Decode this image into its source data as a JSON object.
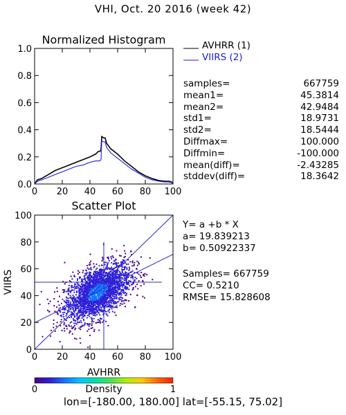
{
  "page": {
    "title": "VHI,  Oct. 20 2016 (week 42)",
    "footer": "lon=[-180.00, 180.00] lat=[-55.15, 75.02]"
  },
  "chart_data": [
    {
      "type": "line",
      "title": "Normalized Histogram",
      "xlabel": "",
      "ylabel": "",
      "xlim": [
        0,
        100
      ],
      "ylim": [
        0,
        1.0
      ],
      "x_ticks": [
        "0",
        "20",
        "40",
        "60",
        "80",
        "100"
      ],
      "y_ticks": [
        "0.0",
        "0.2",
        "0.4",
        "0.6",
        "0.8",
        "1.0"
      ],
      "legend_position": "top-right",
      "series": [
        {
          "name": "AVHRR (1)",
          "color": "#000000",
          "x": [
            0,
            2,
            5,
            10,
            15,
            20,
            25,
            30,
            35,
            40,
            44,
            46,
            47,
            48,
            48.5,
            50,
            51,
            52,
            55,
            60,
            65,
            70,
            75,
            80,
            85,
            90,
            94,
            97,
            99,
            100
          ],
          "y": [
            0.0,
            0.03,
            0.04,
            0.07,
            0.1,
            0.12,
            0.14,
            0.16,
            0.18,
            0.2,
            0.22,
            0.24,
            0.24,
            0.25,
            0.35,
            0.34,
            0.34,
            0.3,
            0.26,
            0.22,
            0.17,
            0.13,
            0.09,
            0.06,
            0.04,
            0.025,
            0.02,
            0.02,
            0.015,
            0.0
          ]
        },
        {
          "name": "VIIRS (2)",
          "color": "#1a1ae6",
          "x": [
            0,
            2,
            5,
            10,
            15,
            20,
            25,
            30,
            35,
            40,
            44,
            46,
            47,
            48,
            48.5,
            50,
            51,
            52,
            55,
            60,
            65,
            70,
            75,
            80,
            85,
            90,
            94,
            97,
            99,
            100
          ],
          "y": [
            0.0,
            0.02,
            0.03,
            0.05,
            0.07,
            0.09,
            0.11,
            0.13,
            0.14,
            0.16,
            0.17,
            0.17,
            0.17,
            0.18,
            0.32,
            0.31,
            0.31,
            0.27,
            0.23,
            0.19,
            0.15,
            0.11,
            0.08,
            0.05,
            0.03,
            0.02,
            0.015,
            0.015,
            0.01,
            0.0
          ]
        }
      ],
      "stats": [
        {
          "label": "samples=",
          "value": "667759"
        },
        {
          "label": "mean1=",
          "value": "45.3814"
        },
        {
          "label": "mean2=",
          "value": "42.9484"
        },
        {
          "label": "std1=",
          "value": "18.9731"
        },
        {
          "label": "std2=",
          "value": "18.5444"
        },
        {
          "label": "Diffmax=",
          "value": "100.000"
        },
        {
          "label": "Diffmin=",
          "value": "-100.000"
        },
        {
          "label": "mean(diff)=",
          "value": "-2.43285"
        },
        {
          "label": "stddev(diff)=",
          "value": "18.3642"
        }
      ]
    },
    {
      "type": "scatter",
      "title": "Scatter Plot",
      "xlabel": "AVHRR",
      "ylabel": "VIIRS",
      "xlim": [
        0,
        100
      ],
      "ylim": [
        0,
        100
      ],
      "x_ticks": [
        "0",
        "20",
        "40",
        "60",
        "80",
        "100"
      ],
      "y_ticks": [
        "0",
        "20",
        "40",
        "60",
        "80",
        "100"
      ],
      "cloud": {
        "center_x": 45,
        "center_y": 43,
        "std_x": 12,
        "std_y": 11,
        "correlation": 0.52
      },
      "mean_lines": {
        "x": 50,
        "y": 50
      },
      "fit": {
        "intercept": 19.839213,
        "slope": 0.50922337
      },
      "fit_text": [
        "Y=  a  +b  *  X",
        "a=  19.839213",
        "b=  0.50922337"
      ],
      "stats_text": [
        "Samples=  667759",
        "CC=   0.5210",
        "RMSE=  15.828608"
      ],
      "colorbar": {
        "title": "Density",
        "min_label": "0",
        "max_label": "1",
        "colors": [
          "#4b0082",
          "#3020d8",
          "#1478ff",
          "#00c8ff",
          "#00e0a0",
          "#50e050",
          "#b4f000",
          "#ffc800",
          "#ff6400",
          "#ff2000"
        ]
      }
    }
  ]
}
